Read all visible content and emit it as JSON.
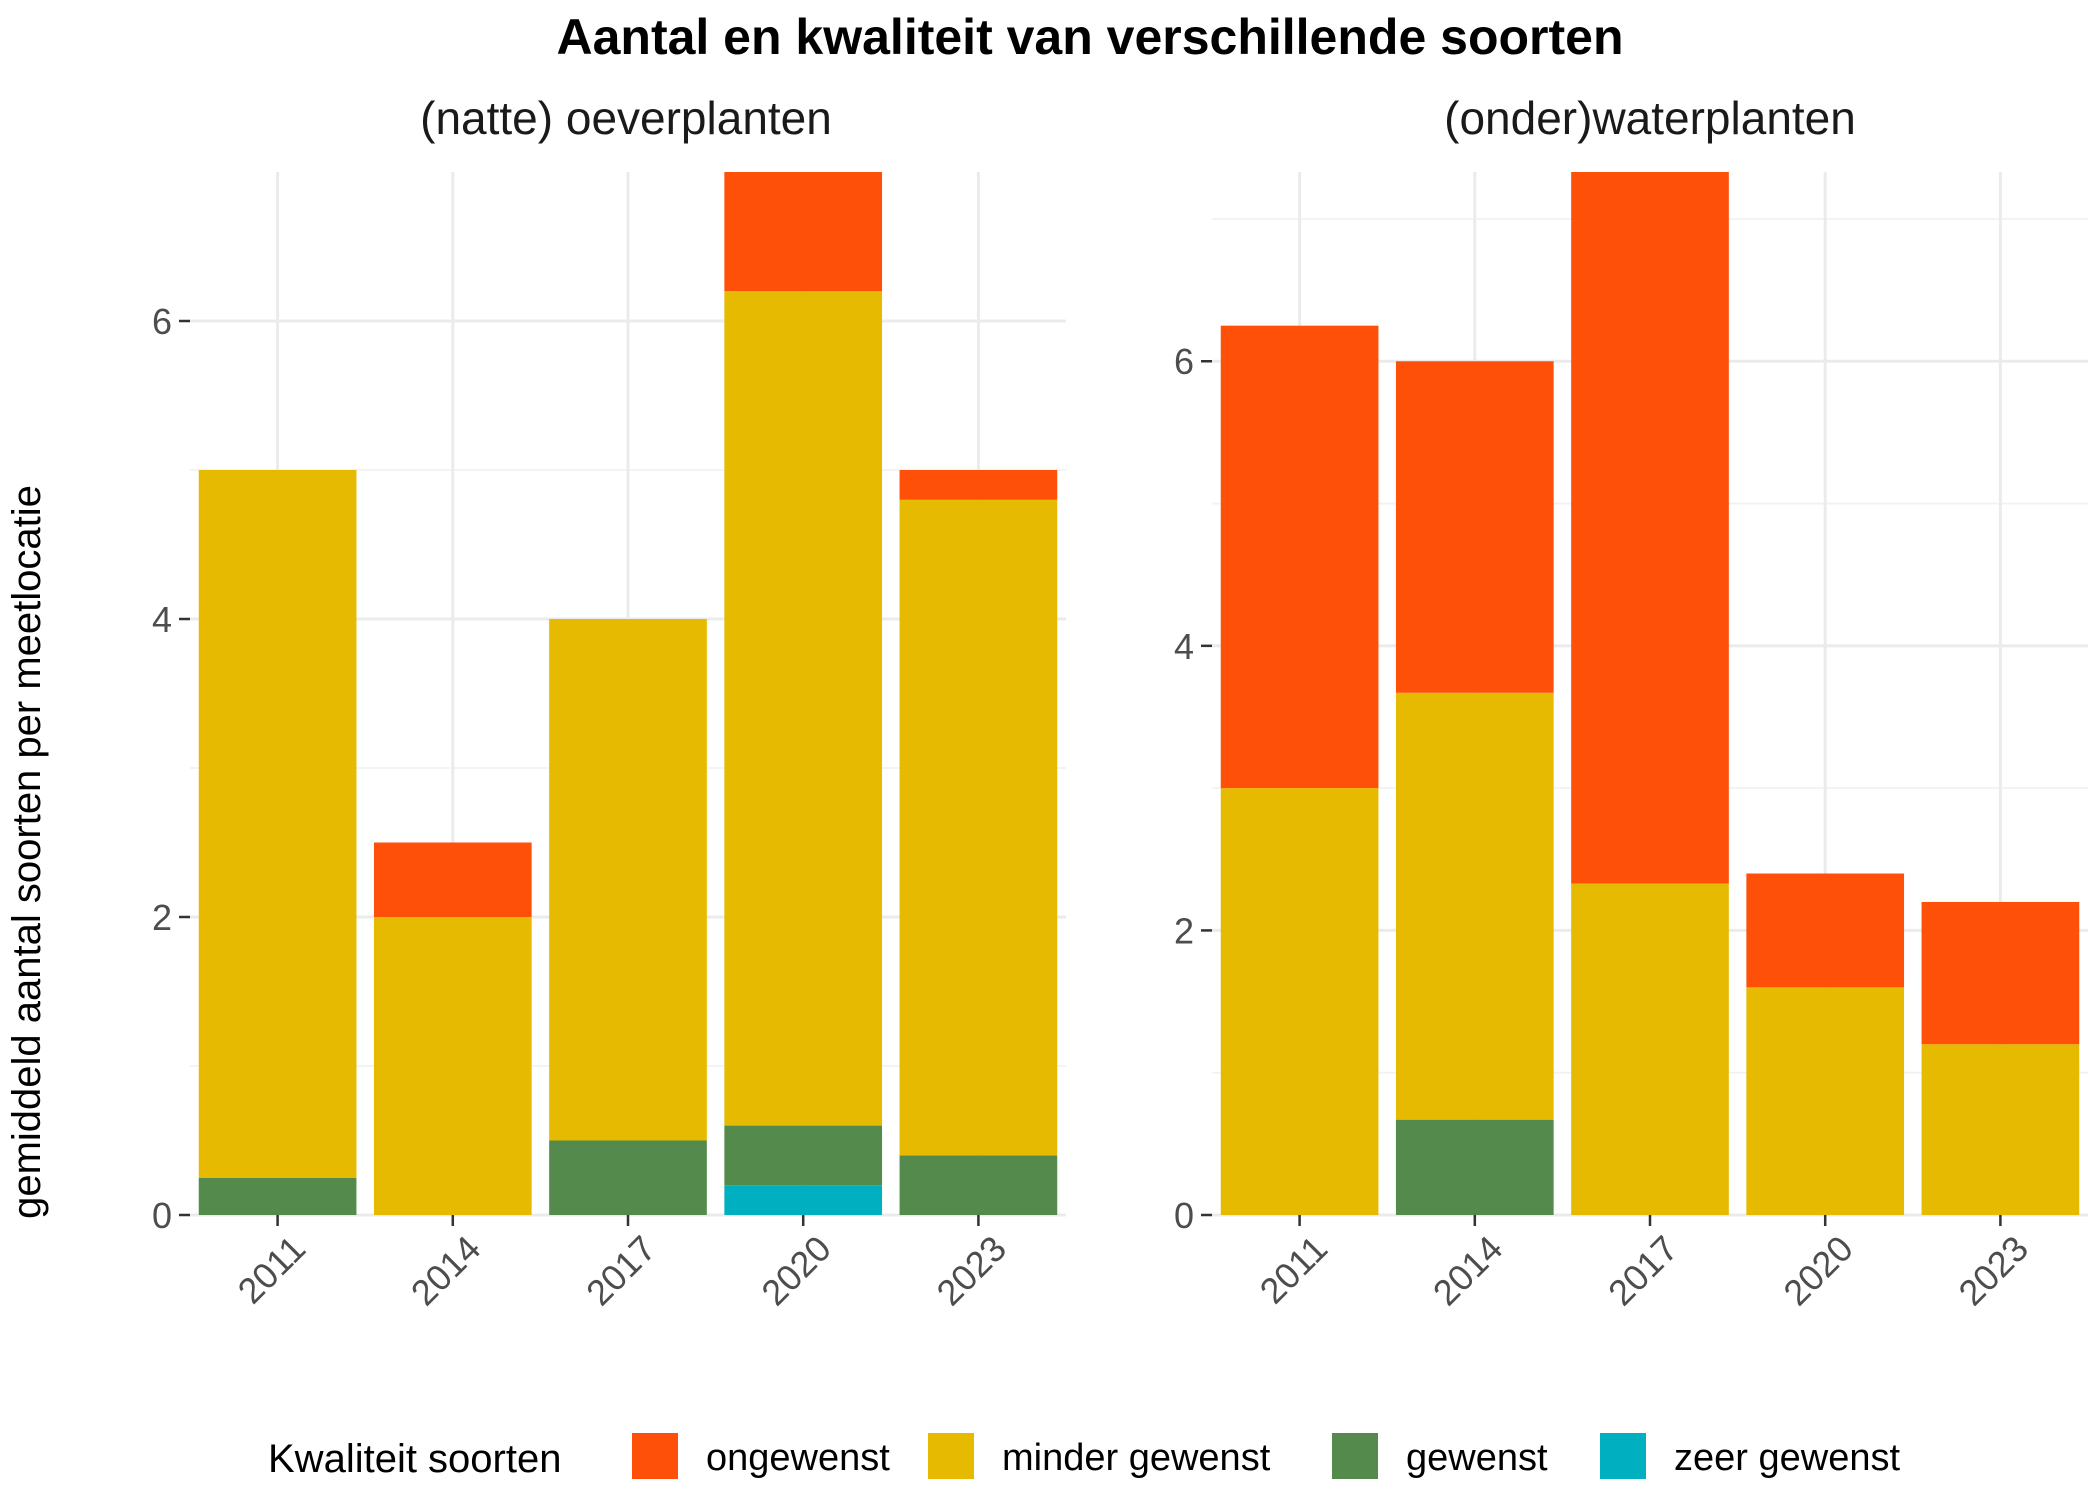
{
  "chart_data": {
    "type": "bar",
    "stacked": true,
    "title": "Aantal en kwaliteit van verschillende soorten",
    "ylabel": "gemiddeld aantal soorten per meetlocatie",
    "xlabel": "",
    "legend": {
      "title": "Kwaliteit soorten",
      "position": "bottom",
      "entries": [
        {
          "key": "ongewenst",
          "label": "ongewenst",
          "color": "#FF500A"
        },
        {
          "key": "minder_gewenst",
          "label": "minder gewenst",
          "color": "#E6BA00"
        },
        {
          "key": "gewenst",
          "label": "gewenst",
          "color": "#548B4C"
        },
        {
          "key": "zeer_gewenst",
          "label": "zeer gewenst",
          "color": "#00B0C0"
        }
      ]
    },
    "panels": [
      {
        "title": "(natte) oeverplanten",
        "categories": [
          "2011",
          "2014",
          "2017",
          "2020",
          "2023"
        ],
        "ylim": [
          0,
          7
        ],
        "yticks": [
          0,
          2,
          4,
          6
        ],
        "series": [
          {
            "key": "zeer_gewenst",
            "values": [
              0,
              0,
              0,
              0.2,
              0
            ]
          },
          {
            "key": "gewenst",
            "values": [
              0.25,
              0,
              0.5,
              0.4,
              0.4
            ]
          },
          {
            "key": "minder_gewenst",
            "values": [
              4.75,
              2.0,
              3.5,
              5.6,
              4.4
            ]
          },
          {
            "key": "ongewenst",
            "values": [
              0,
              0.5,
              0,
              0.8,
              0.2
            ]
          }
        ]
      },
      {
        "title": "(onder)waterplanten",
        "categories": [
          "2011",
          "2014",
          "2017",
          "2020",
          "2023"
        ],
        "ylim": [
          0,
          7.33
        ],
        "yticks": [
          0,
          2,
          4,
          6
        ],
        "series": [
          {
            "key": "zeer_gewenst",
            "values": [
              0,
              0,
              0,
              0,
              0
            ]
          },
          {
            "key": "gewenst",
            "values": [
              0,
              0.67,
              0,
              0,
              0
            ]
          },
          {
            "key": "minder_gewenst",
            "values": [
              3.0,
              3.0,
              2.33,
              1.6,
              1.2
            ]
          },
          {
            "key": "ongewenst",
            "values": [
              3.25,
              2.33,
              5.0,
              0.8,
              1.0
            ]
          }
        ]
      }
    ]
  }
}
